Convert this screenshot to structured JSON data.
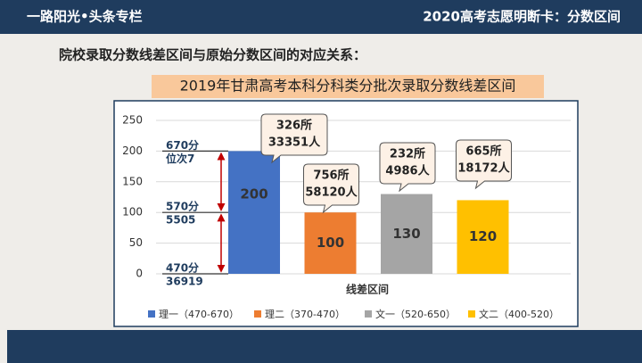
{
  "header": {
    "left": "一路阳光•头条专栏",
    "right": "2020高考志愿明断卡：分数区间"
  },
  "heading": "院校录取分数线差区间与原始分数区间的对应关系：",
  "chart_data": {
    "type": "bar",
    "title": "2019年甘肃高考本科分科类分批次录取分数线差区间",
    "x_label": "线差区间",
    "categories": [
      null
    ],
    "series": [
      {
        "name": "理一（470-670）",
        "color": "#4472c4",
        "values": [
          200
        ],
        "callout": [
          "326所",
          "33351人"
        ]
      },
      {
        "name": "理二（370-470）",
        "color": "#ed7d31",
        "values": [
          100
        ],
        "callout": [
          "756所",
          "58120人"
        ]
      },
      {
        "name": "文一（520-650）",
        "color": "#a5a5a5",
        "values": [
          130
        ],
        "callout": [
          "232所",
          "4986人"
        ]
      },
      {
        "name": "文二（400-520）",
        "color": "#ffc000",
        "values": [
          120
        ],
        "callout": [
          "665所",
          "18172人"
        ]
      }
    ],
    "ylim": [
      0,
      250
    ],
    "yticks": [
      0,
      50,
      100,
      150,
      200,
      250
    ],
    "grid": true,
    "legend": "bottom",
    "score_marks": [
      {
        "value": 200,
        "lines": [
          "670分",
          "位次7"
        ]
      },
      {
        "value": 100,
        "lines": [
          "570分",
          "5505"
        ]
      },
      {
        "value": 0,
        "lines": [
          "470分",
          "36919"
        ]
      }
    ]
  }
}
